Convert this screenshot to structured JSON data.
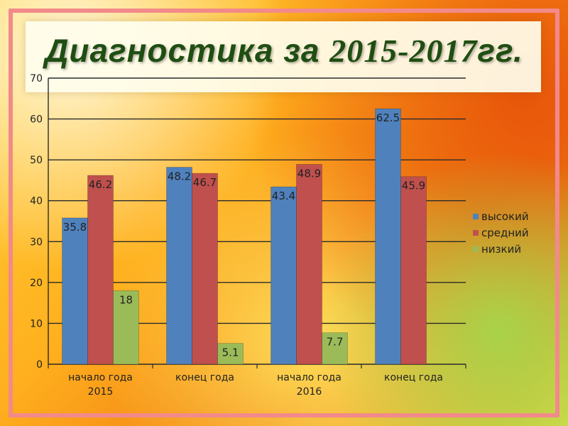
{
  "slide": {
    "title_prefix": "Диагностика за ",
    "title_years": "2015-2017",
    "title_suffix": "гг."
  },
  "chart_data": {
    "type": "bar",
    "categories": [
      [
        "начало года",
        "2015"
      ],
      [
        "конец года",
        ""
      ],
      [
        "начало года",
        "2016"
      ],
      [
        "конец года",
        ""
      ]
    ],
    "series": [
      {
        "name": "высокий",
        "color": "#4f81bd",
        "values": [
          35.8,
          48.2,
          43.4,
          62.5
        ]
      },
      {
        "name": "средний",
        "color": "#c0504d",
        "values": [
          46.2,
          46.7,
          48.9,
          45.9
        ]
      },
      {
        "name": "низкий",
        "color": "#9bbb59",
        "values": [
          18,
          5.1,
          7.7,
          null
        ]
      }
    ],
    "ylim": [
      0,
      70
    ],
    "yticks": [
      0,
      10,
      20,
      30,
      40,
      50,
      60,
      70
    ],
    "grid": true,
    "legend": "right"
  }
}
